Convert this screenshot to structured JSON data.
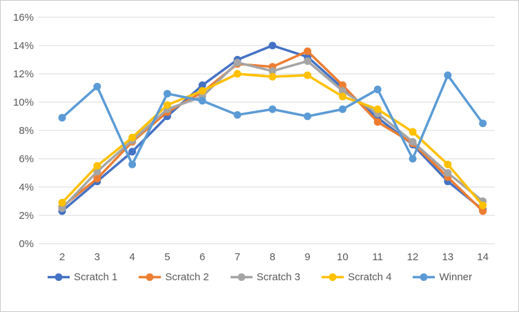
{
  "chart_data": {
    "type": "line",
    "title": "",
    "xlabel": "",
    "ylabel": "",
    "ylim": [
      0,
      16
    ],
    "grid": "horizontal",
    "legend_position": "bottom",
    "y_ticks": [
      {
        "label": "0%",
        "value": 0
      },
      {
        "label": "2%",
        "value": 2
      },
      {
        "label": "4%",
        "value": 4
      },
      {
        "label": "6%",
        "value": 6
      },
      {
        "label": "8%",
        "value": 8
      },
      {
        "label": "10%",
        "value": 10
      },
      {
        "label": "12%",
        "value": 12
      },
      {
        "label": "14%",
        "value": 14
      },
      {
        "label": "16%",
        "value": 16
      }
    ],
    "categories": [
      "2",
      "3",
      "4",
      "5",
      "6",
      "7",
      "8",
      "9",
      "10",
      "11",
      "12",
      "13",
      "14"
    ],
    "series": [
      {
        "name": "Scratch 1",
        "color": "#4472C4",
        "values": [
          2.3,
          4.4,
          6.5,
          9.0,
          11.2,
          13.0,
          14.0,
          13.2,
          11.0,
          8.9,
          7.0,
          4.4,
          2.4
        ]
      },
      {
        "name": "Scratch 2",
        "color": "#ED7D31",
        "values": [
          2.6,
          4.6,
          7.2,
          9.3,
          10.7,
          12.7,
          12.5,
          13.6,
          11.2,
          8.6,
          7.1,
          4.7,
          2.3
        ]
      },
      {
        "name": "Scratch 3",
        "color": "#A5A5A5",
        "values": [
          2.5,
          5.1,
          7.3,
          9.5,
          10.4,
          12.8,
          12.2,
          12.9,
          10.8,
          9.2,
          7.2,
          5.0,
          3.0
        ]
      },
      {
        "name": "Scratch 4",
        "color": "#FFC000",
        "values": [
          2.9,
          5.5,
          7.5,
          9.8,
          10.8,
          12.0,
          11.8,
          11.9,
          10.4,
          9.5,
          7.9,
          5.6,
          2.7
        ]
      },
      {
        "name": "Winner",
        "color": "#5B9BD5",
        "values": [
          8.9,
          11.1,
          5.6,
          10.6,
          10.1,
          9.1,
          9.5,
          9.0,
          9.5,
          10.9,
          6.0,
          11.9,
          8.5
        ]
      }
    ],
    "colors": {
      "gridline": "#d9d9d9",
      "axis_text": "#595959",
      "background": "#ffffff",
      "frame_border": "#c9c9c9"
    }
  }
}
